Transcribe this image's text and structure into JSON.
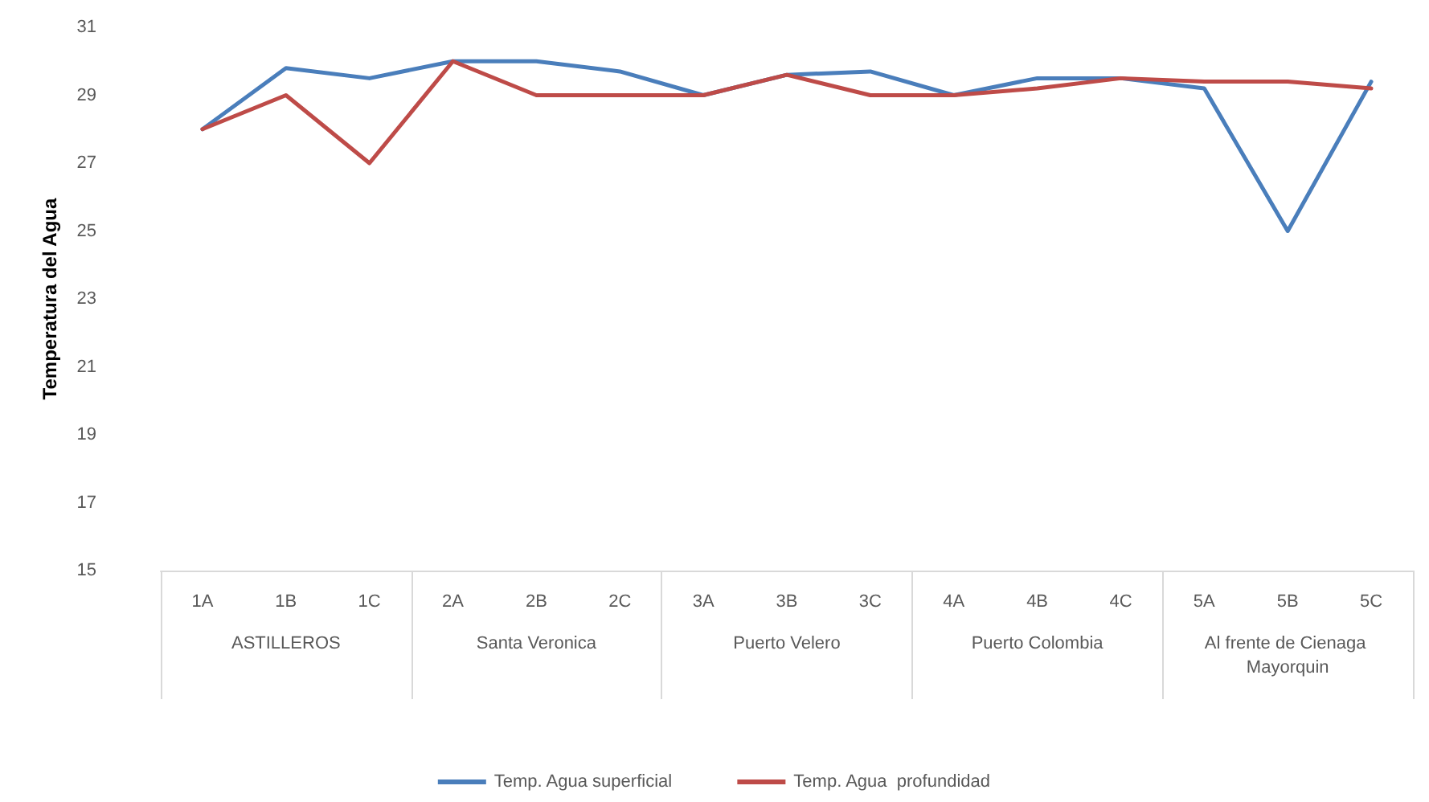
{
  "chart_data": {
    "type": "line",
    "ylabel": "Temperatura del Agua",
    "categories": [
      "1A",
      "1B",
      "1C",
      "2A",
      "2B",
      "2C",
      "3A",
      "3B",
      "3C",
      "4A",
      "4B",
      "4C",
      "5A",
      "5B",
      "5C"
    ],
    "annotations": [
      "ASTILLEROS",
      "Santa Veronica",
      "Puerto Velero",
      "Puerto Colombia",
      "Al frente de Cienaga Mayorquin"
    ],
    "series": [
      {
        "name": "Temp. Agua superficial",
        "color": "#4a7ebb",
        "values": [
          28,
          29.8,
          29.5,
          30,
          30,
          29.7,
          29,
          29.6,
          29.7,
          29,
          29.5,
          29.5,
          29.2,
          25,
          29.4
        ]
      },
      {
        "name": "Temp. Agua  profundidad",
        "color": "#be4b48",
        "values": [
          28,
          29,
          27,
          30,
          29,
          29,
          29,
          29.6,
          29,
          29,
          29.2,
          29.5,
          29.4,
          29.4,
          29.2
        ]
      }
    ],
    "ylim": [
      15,
      31
    ],
    "yticks": [
      15,
      17,
      19,
      21,
      23,
      25,
      27,
      29,
      31
    ],
    "grid": false,
    "legend": "bottom",
    "marker": "none",
    "line_style": "solid"
  }
}
